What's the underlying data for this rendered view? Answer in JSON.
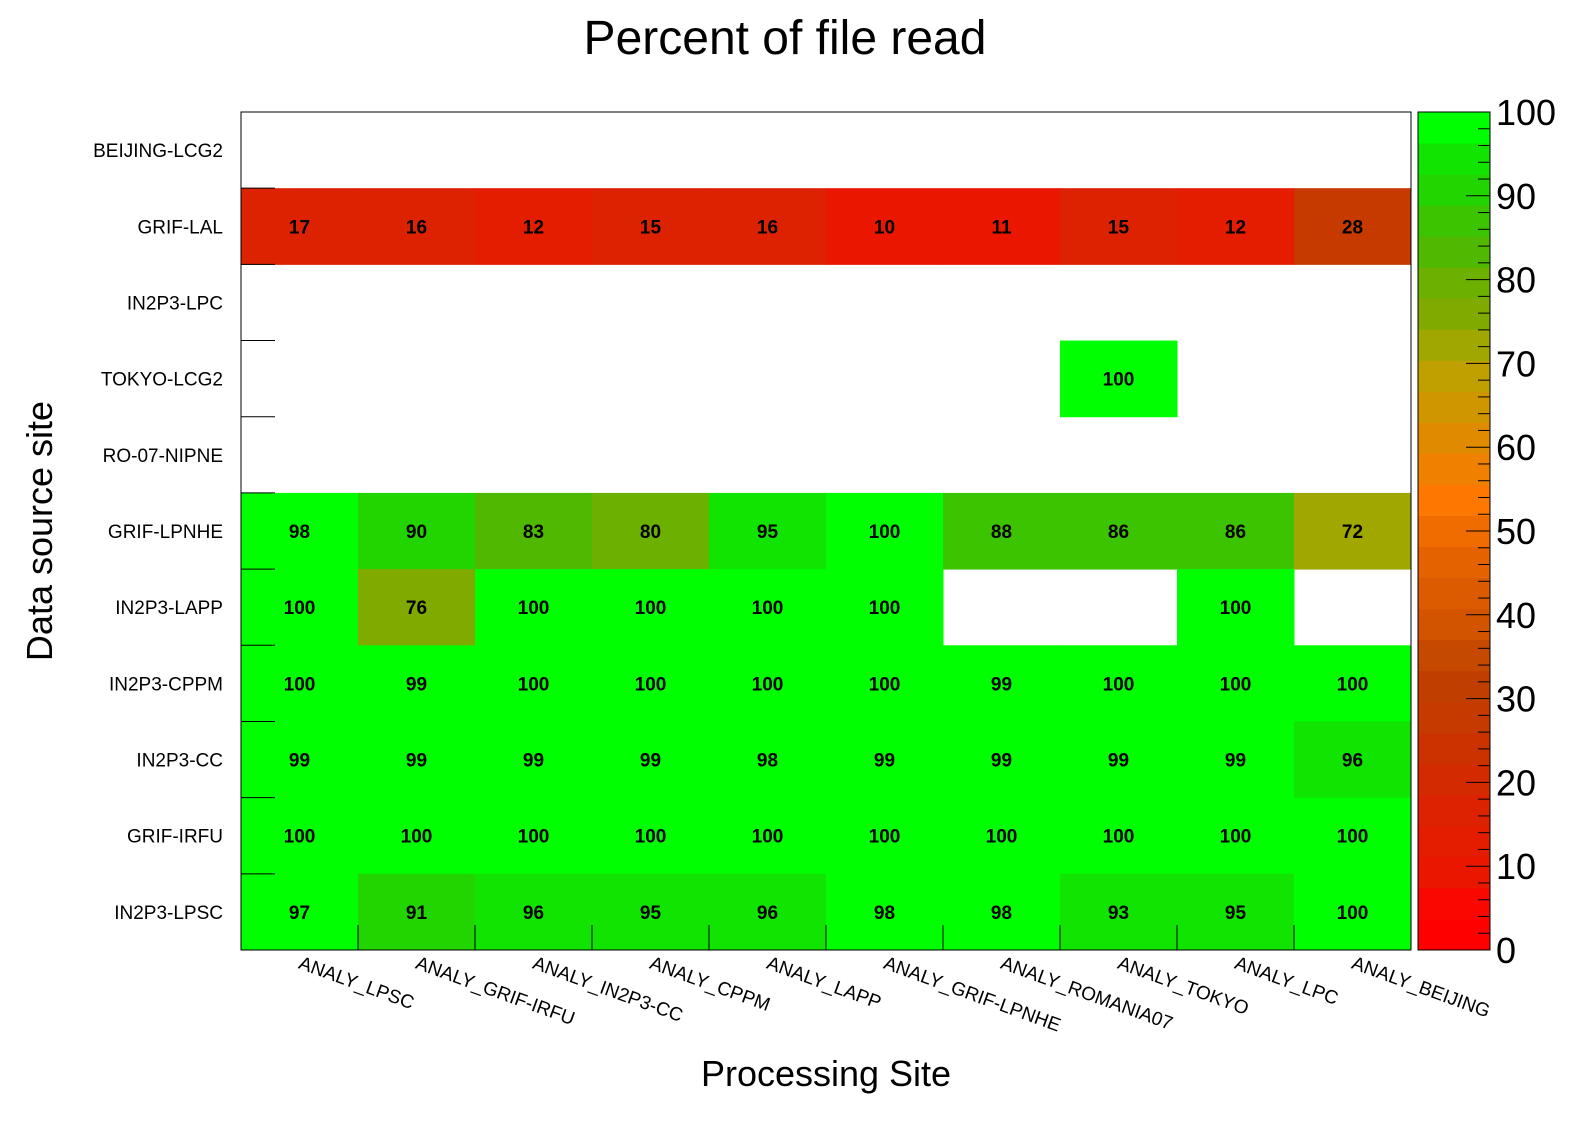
{
  "chart_data": {
    "type": "heatmap",
    "title": "Percent of file read",
    "xlabel": "Processing Site",
    "ylabel": "Data source site",
    "x_categories": [
      "ANALY_LPSC",
      "ANALY_GRIF-IRFU",
      "ANALY_IN2P3-CC",
      "ANALY_CPPM",
      "ANALY_LAPP",
      "ANALY_GRIF-LPNHE",
      "ANALY_ROMANIA07",
      "ANALY_TOKYO",
      "ANALY_LPC",
      "ANALY_BEIJING"
    ],
    "y_categories": [
      "BEIJING-LCG2",
      "GRIF-LAL",
      "IN2P3-LPC",
      "TOKYO-LCG2",
      "RO-07-NIPNE",
      "GRIF-LPNHE",
      "IN2P3-LAPP",
      "IN2P3-CPPM",
      "IN2P3-CC",
      "GRIF-IRFU",
      "IN2P3-LPSC"
    ],
    "values": [
      [
        null,
        null,
        null,
        null,
        null,
        null,
        null,
        null,
        null,
        null
      ],
      [
        17,
        16,
        12,
        15,
        16,
        10,
        11,
        15,
        12,
        28
      ],
      [
        null,
        null,
        null,
        null,
        null,
        null,
        null,
        null,
        null,
        null
      ],
      [
        null,
        null,
        null,
        null,
        null,
        null,
        null,
        100,
        null,
        null
      ],
      [
        null,
        null,
        null,
        null,
        null,
        null,
        null,
        null,
        null,
        null
      ],
      [
        98,
        90,
        83,
        80,
        95,
        100,
        88,
        86,
        86,
        72
      ],
      [
        100,
        76,
        100,
        100,
        100,
        100,
        null,
        null,
        100,
        null
      ],
      [
        100,
        99,
        100,
        100,
        100,
        100,
        99,
        100,
        100,
        100
      ],
      [
        99,
        99,
        99,
        99,
        98,
        99,
        99,
        99,
        99,
        96
      ],
      [
        100,
        100,
        100,
        100,
        100,
        100,
        100,
        100,
        100,
        100
      ],
      [
        97,
        91,
        96,
        95,
        96,
        98,
        98,
        93,
        95,
        100
      ]
    ],
    "zlim": [
      0,
      100
    ],
    "colorbar_ticks": [
      "0",
      "10",
      "20",
      "30",
      "40",
      "50",
      "60",
      "70",
      "80",
      "90",
      "100"
    ],
    "palette": [
      "#ff0000",
      "#f80800",
      "#ea1600",
      "#e41c00",
      "#dc2200",
      "#d42a00",
      "#cc3200",
      "#c63a00",
      "#c03f00",
      "#c54a00",
      "#d35400",
      "#dc5a00",
      "#e56200",
      "#f06c00",
      "#fc7800",
      "#f08000",
      "#e08a00",
      "#d09600",
      "#c0a000",
      "#a0a800",
      "#80aa00",
      "#6cb000",
      "#50b800",
      "#3cc400",
      "#22d400",
      "#10e400",
      "#00ff00"
    ],
    "grid": false,
    "legend": "colorbar-right"
  }
}
